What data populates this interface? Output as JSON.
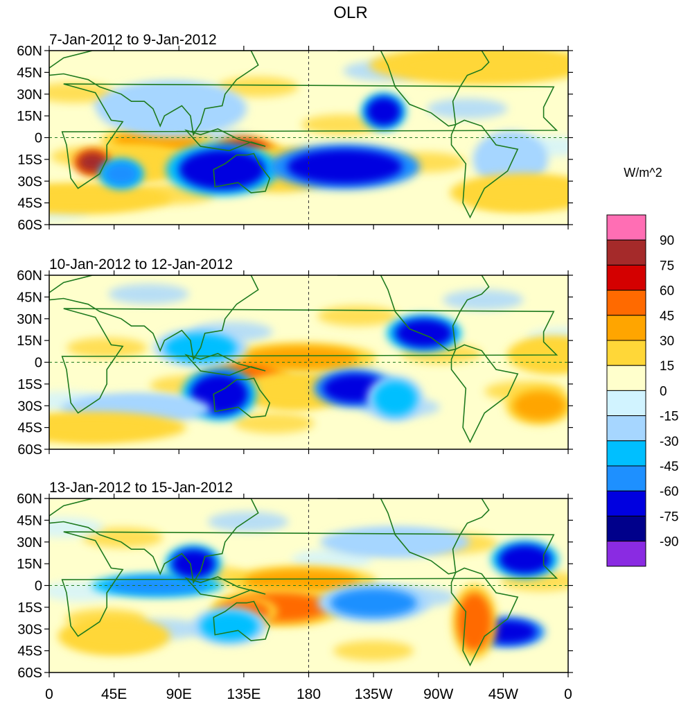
{
  "chart_data": {
    "type": "contour-map",
    "title": "OLR",
    "units_label": "W/m^2",
    "lat_ticks": [
      "60N",
      "45N",
      "30N",
      "15N",
      "0",
      "15S",
      "30S",
      "45S",
      "60S"
    ],
    "lat_values": [
      60,
      45,
      30,
      15,
      0,
      -15,
      -30,
      -45,
      -60
    ],
    "lon_ticks": [
      "0",
      "45E",
      "90E",
      "135E",
      "180",
      "135W",
      "90W",
      "45W",
      "0"
    ],
    "lon_values": [
      0,
      45,
      90,
      135,
      180,
      225,
      270,
      315,
      360
    ],
    "colorbar": {
      "labels": [
        "90",
        "75",
        "60",
        "45",
        "30",
        "15",
        "0",
        "-15",
        "-30",
        "-45",
        "-60",
        "-75",
        "-90"
      ],
      "colors": [
        "#ff6eb4",
        "#a52a2a",
        "#d40000",
        "#ff6a00",
        "#ffa500",
        "#ffd738",
        "#ffffcc",
        "#d1f3ff",
        "#a6d6ff",
        "#00bfff",
        "#1e90ff",
        "#0000e0",
        "#00008b",
        "#8a2be2"
      ]
    },
    "panels": [
      {
        "label": "7-Jan-2012 to 9-Jan-2012",
        "anomalies": [
          {
            "lon": 75,
            "lat": -2,
            "w": 30,
            "h": 8,
            "v": 38
          },
          {
            "lon": 60,
            "lat": -18,
            "w": 30,
            "h": 10,
            "v": 22
          },
          {
            "lon": 30,
            "lat": -17,
            "w": 10,
            "h": 7,
            "v": 75
          },
          {
            "lon": 135,
            "lat": -12,
            "w": 20,
            "h": 10,
            "v": 60
          },
          {
            "lon": 160,
            "lat": -22,
            "w": 30,
            "h": 12,
            "v": 25
          },
          {
            "lon": 120,
            "lat": -22,
            "w": 30,
            "h": 14,
            "v": -70
          },
          {
            "lon": 205,
            "lat": -20,
            "w": 40,
            "h": 12,
            "v": -75
          },
          {
            "lon": 232,
            "lat": 18,
            "w": 12,
            "h": 10,
            "v": -70
          },
          {
            "lon": 85,
            "lat": 20,
            "w": 40,
            "h": 15,
            "v": -30
          },
          {
            "lon": 320,
            "lat": -15,
            "w": 20,
            "h": 15,
            "v": -30
          },
          {
            "lon": 300,
            "lat": 50,
            "w": 60,
            "h": 10,
            "v": 25
          },
          {
            "lon": 330,
            "lat": -38,
            "w": 40,
            "h": 10,
            "v": 22
          },
          {
            "lon": 20,
            "lat": -42,
            "w": 50,
            "h": 8,
            "v": 20
          },
          {
            "lon": 50,
            "lat": -25,
            "w": 12,
            "h": 8,
            "v": -60
          }
        ]
      },
      {
        "label": "10-Jan-2012 to 12-Jan-2012",
        "anomalies": [
          {
            "lon": 175,
            "lat": 3,
            "w": 40,
            "h": 8,
            "v": 32
          },
          {
            "lon": 135,
            "lat": -12,
            "w": 25,
            "h": 10,
            "v": 55
          },
          {
            "lon": 170,
            "lat": -20,
            "w": 30,
            "h": 10,
            "v": 28
          },
          {
            "lon": 118,
            "lat": -22,
            "w": 20,
            "h": 14,
            "v": -68
          },
          {
            "lon": 212,
            "lat": -18,
            "w": 22,
            "h": 10,
            "v": -75
          },
          {
            "lon": 260,
            "lat": 20,
            "w": 20,
            "h": 10,
            "v": -70
          },
          {
            "lon": 105,
            "lat": 10,
            "w": 25,
            "h": 10,
            "v": -40
          },
          {
            "lon": 340,
            "lat": -30,
            "w": 18,
            "h": 10,
            "v": 35
          },
          {
            "lon": 350,
            "lat": 5,
            "w": 25,
            "h": 10,
            "v": 28
          },
          {
            "lon": 60,
            "lat": -32,
            "w": 40,
            "h": 8,
            "v": -30
          },
          {
            "lon": 240,
            "lat": -25,
            "w": 15,
            "h": 12,
            "v": -45
          },
          {
            "lon": 30,
            "lat": -45,
            "w": 50,
            "h": 8,
            "v": 22
          }
        ]
      },
      {
        "label": "13-Jan-2012 to 15-Jan-2012",
        "anomalies": [
          {
            "lon": 175,
            "lat": 3,
            "w": 40,
            "h": 8,
            "v": 35
          },
          {
            "lon": 160,
            "lat": -15,
            "w": 35,
            "h": 10,
            "v": 50
          },
          {
            "lon": 135,
            "lat": -18,
            "w": 18,
            "h": 8,
            "v": 50
          },
          {
            "lon": 75,
            "lat": 0,
            "w": 35,
            "h": 6,
            "v": -60
          },
          {
            "lon": 100,
            "lat": 15,
            "w": 15,
            "h": 10,
            "v": -68
          },
          {
            "lon": 225,
            "lat": -12,
            "w": 30,
            "h": 10,
            "v": -50
          },
          {
            "lon": 330,
            "lat": 18,
            "w": 18,
            "h": 10,
            "v": -70
          },
          {
            "lon": 318,
            "lat": -32,
            "w": 20,
            "h": 8,
            "v": -72
          },
          {
            "lon": 295,
            "lat": -25,
            "w": 12,
            "h": 20,
            "v": 45
          },
          {
            "lon": 45,
            "lat": -35,
            "w": 30,
            "h": 10,
            "v": 25
          },
          {
            "lon": 125,
            "lat": -28,
            "w": 20,
            "h": 10,
            "v": -35
          },
          {
            "lon": 240,
            "lat": 30,
            "w": 40,
            "h": 8,
            "v": -30
          }
        ]
      }
    ]
  }
}
